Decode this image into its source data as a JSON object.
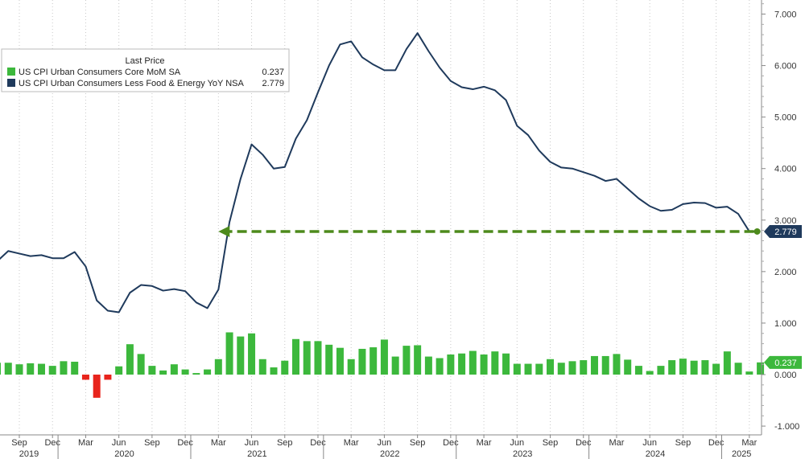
{
  "chart_data": {
    "type": "bar+line",
    "legend": {
      "title": "Last Price",
      "placement": "top-left",
      "entries": [
        {
          "name": "US CPI Urban Consumers Core MoM SA",
          "last_value": "0.237",
          "color": "#3cb83c",
          "marker": "square"
        },
        {
          "name": "US CPI Urban Consumers Less Food & Energy YoY NSA",
          "last_value": "2.779",
          "color": "#1f3a5c",
          "marker": "square"
        }
      ]
    },
    "y_axis": {
      "side": "right",
      "range": [
        -1.2,
        7.2
      ],
      "ticks": [
        "7.000",
        "6.000",
        "5.000",
        "4.000",
        "3.000",
        "2.000",
        "1.000",
        "0.000",
        "-1.000"
      ],
      "tick_values": [
        7,
        6,
        5,
        4,
        3,
        2,
        1,
        0,
        -1
      ]
    },
    "x_axis": {
      "start": "2019-07",
      "end": "2025-04",
      "month_ticks": [
        "Sep",
        "Dec",
        "Mar",
        "Jun",
        "Sep",
        "Dec",
        "Mar",
        "Jun",
        "Sep",
        "Dec",
        "Mar",
        "Jun",
        "Sep",
        "Dec",
        "Mar",
        "Jun",
        "Sep",
        "Dec",
        "Mar",
        "Jun",
        "Sep",
        "Dec",
        "Mar"
      ],
      "month_tick_dates": [
        "2019-09",
        "2019-12",
        "2020-03",
        "2020-06",
        "2020-09",
        "2020-12",
        "2021-03",
        "2021-06",
        "2021-09",
        "2021-12",
        "2022-03",
        "2022-06",
        "2022-09",
        "2022-12",
        "2023-03",
        "2023-06",
        "2023-09",
        "2023-12",
        "2024-03",
        "2024-06",
        "2024-09",
        "2024-12",
        "2025-03"
      ],
      "years": [
        "2019",
        "2020",
        "2021",
        "2022",
        "2023",
        "2024",
        "2025"
      ],
      "grid": "vertical dotted"
    },
    "colors": {
      "positive_bar": "#3cb83c",
      "negative_bar": "#e8241c",
      "line": "#1f3a5c",
      "arrow": "#4d8a1c",
      "badge_line_bg": "#1f3a5c",
      "badge_bar_bg": "#3cb83c"
    },
    "series": [
      {
        "name": "US CPI Urban Consumers Core MoM SA",
        "kind": "bar",
        "x": [
          "2019-07",
          "2019-08",
          "2019-09",
          "2019-10",
          "2019-11",
          "2019-12",
          "2020-01",
          "2020-02",
          "2020-03",
          "2020-04",
          "2020-05",
          "2020-06",
          "2020-07",
          "2020-08",
          "2020-09",
          "2020-10",
          "2020-11",
          "2020-12",
          "2021-01",
          "2021-02",
          "2021-03",
          "2021-04",
          "2021-05",
          "2021-06",
          "2021-07",
          "2021-08",
          "2021-09",
          "2021-10",
          "2021-11",
          "2021-12",
          "2022-01",
          "2022-02",
          "2022-03",
          "2022-04",
          "2022-05",
          "2022-06",
          "2022-07",
          "2022-08",
          "2022-09",
          "2022-10",
          "2022-11",
          "2022-12",
          "2023-01",
          "2023-02",
          "2023-03",
          "2023-04",
          "2023-05",
          "2023-06",
          "2023-07",
          "2023-08",
          "2023-09",
          "2023-10",
          "2023-11",
          "2023-12",
          "2024-01",
          "2024-02",
          "2024-03",
          "2024-04",
          "2024-05",
          "2024-06",
          "2024-07",
          "2024-08",
          "2024-09",
          "2024-10",
          "2024-11",
          "2024-12",
          "2025-01",
          "2025-02",
          "2025-03",
          "2025-04"
        ],
        "values": [
          0.23,
          0.23,
          0.2,
          0.22,
          0.21,
          0.17,
          0.26,
          0.25,
          -0.1,
          -0.45,
          -0.1,
          0.16,
          0.59,
          0.4,
          0.17,
          0.08,
          0.2,
          0.1,
          0.03,
          0.1,
          0.3,
          0.82,
          0.74,
          0.8,
          0.3,
          0.14,
          0.27,
          0.69,
          0.65,
          0.65,
          0.58,
          0.52,
          0.3,
          0.5,
          0.53,
          0.68,
          0.35,
          0.56,
          0.57,
          0.35,
          0.32,
          0.39,
          0.41,
          0.46,
          0.39,
          0.45,
          0.41,
          0.21,
          0.21,
          0.21,
          0.3,
          0.23,
          0.26,
          0.28,
          0.36,
          0.36,
          0.4,
          0.29,
          0.17,
          0.07,
          0.17,
          0.28,
          0.31,
          0.27,
          0.28,
          0.21,
          0.45,
          0.23,
          0.06,
          0.237
        ]
      },
      {
        "name": "US CPI Urban Consumers Less Food & Energy YoY NSA",
        "kind": "line",
        "x": [
          "2019-07",
          "2019-08",
          "2019-09",
          "2019-10",
          "2019-11",
          "2019-12",
          "2020-01",
          "2020-02",
          "2020-03",
          "2020-04",
          "2020-05",
          "2020-06",
          "2020-07",
          "2020-08",
          "2020-09",
          "2020-10",
          "2020-11",
          "2020-12",
          "2021-01",
          "2021-02",
          "2021-03",
          "2021-04",
          "2021-05",
          "2021-06",
          "2021-07",
          "2021-08",
          "2021-09",
          "2021-10",
          "2021-11",
          "2021-12",
          "2022-01",
          "2022-02",
          "2022-03",
          "2022-04",
          "2022-05",
          "2022-06",
          "2022-07",
          "2022-08",
          "2022-09",
          "2022-10",
          "2022-11",
          "2022-12",
          "2023-01",
          "2023-02",
          "2023-03",
          "2023-04",
          "2023-05",
          "2023-06",
          "2023-07",
          "2023-08",
          "2023-09",
          "2023-10",
          "2023-11",
          "2023-12",
          "2024-01",
          "2024-02",
          "2024-03",
          "2024-04",
          "2024-05",
          "2024-06",
          "2024-07",
          "2024-08",
          "2024-09",
          "2024-10",
          "2024-11",
          "2024-12",
          "2025-01",
          "2025-02",
          "2025-03",
          "2025-04"
        ],
        "values": [
          2.2,
          2.4,
          2.35,
          2.3,
          2.32,
          2.26,
          2.26,
          2.38,
          2.1,
          1.44,
          1.24,
          1.21,
          1.59,
          1.74,
          1.72,
          1.63,
          1.66,
          1.62,
          1.4,
          1.29,
          1.65,
          2.96,
          3.8,
          4.47,
          4.27,
          4.0,
          4.03,
          4.58,
          4.94,
          5.48,
          6.0,
          6.41,
          6.47,
          6.16,
          6.02,
          5.91,
          5.91,
          6.32,
          6.63,
          6.28,
          5.96,
          5.7,
          5.58,
          5.54,
          5.59,
          5.52,
          5.33,
          4.83,
          4.65,
          4.35,
          4.13,
          4.02,
          4.0,
          3.93,
          3.86,
          3.76,
          3.8,
          3.61,
          3.42,
          3.27,
          3.18,
          3.2,
          3.31,
          3.34,
          3.33,
          3.24,
          3.26,
          3.12,
          2.779,
          2.779
        ]
      }
    ],
    "annotation": {
      "type": "dashed-arrow",
      "from_x": "2025-04",
      "to_x": "2021-03",
      "y": 2.779
    },
    "last_value_badges": [
      {
        "series": "US CPI Urban Consumers Less Food & Energy YoY NSA",
        "label": "2.779",
        "y": 2.779
      },
      {
        "series": "US CPI Urban Consumers Core MoM SA",
        "label": "0.237",
        "y": 0.237
      }
    ]
  }
}
